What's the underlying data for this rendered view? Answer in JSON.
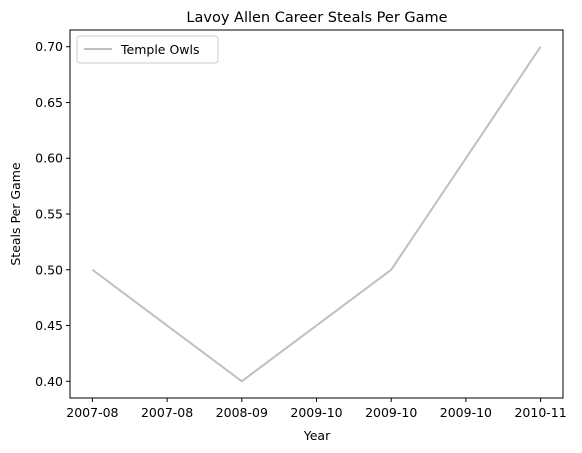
{
  "chart_data": {
    "type": "line",
    "title": "Lavoy Allen Career Steals Per Game",
    "xlabel": "Year",
    "ylabel": "Steals Per Game",
    "x": [
      2007,
      2008,
      2009,
      2010
    ],
    "x_tick_labels": [
      "2007-08",
      "2007-08",
      "2008-09",
      "2009-10",
      "2009-10",
      "2009-10",
      "2010-11"
    ],
    "ylim": [
      0.385,
      0.715
    ],
    "y_ticks": [
      0.4,
      0.45,
      0.5,
      0.55,
      0.6,
      0.65,
      0.7
    ],
    "y_tick_labels": [
      "0.40",
      "0.45",
      "0.50",
      "0.55",
      "0.60",
      "0.65",
      "0.70"
    ],
    "series": [
      {
        "name": "Temple Owls",
        "x": [
          2007,
          2008,
          2009,
          2010
        ],
        "values": [
          0.5,
          0.4,
          0.5,
          0.7
        ],
        "color": "#bfbfbf"
      }
    ],
    "legend_position": "top-left",
    "grid": false
  }
}
